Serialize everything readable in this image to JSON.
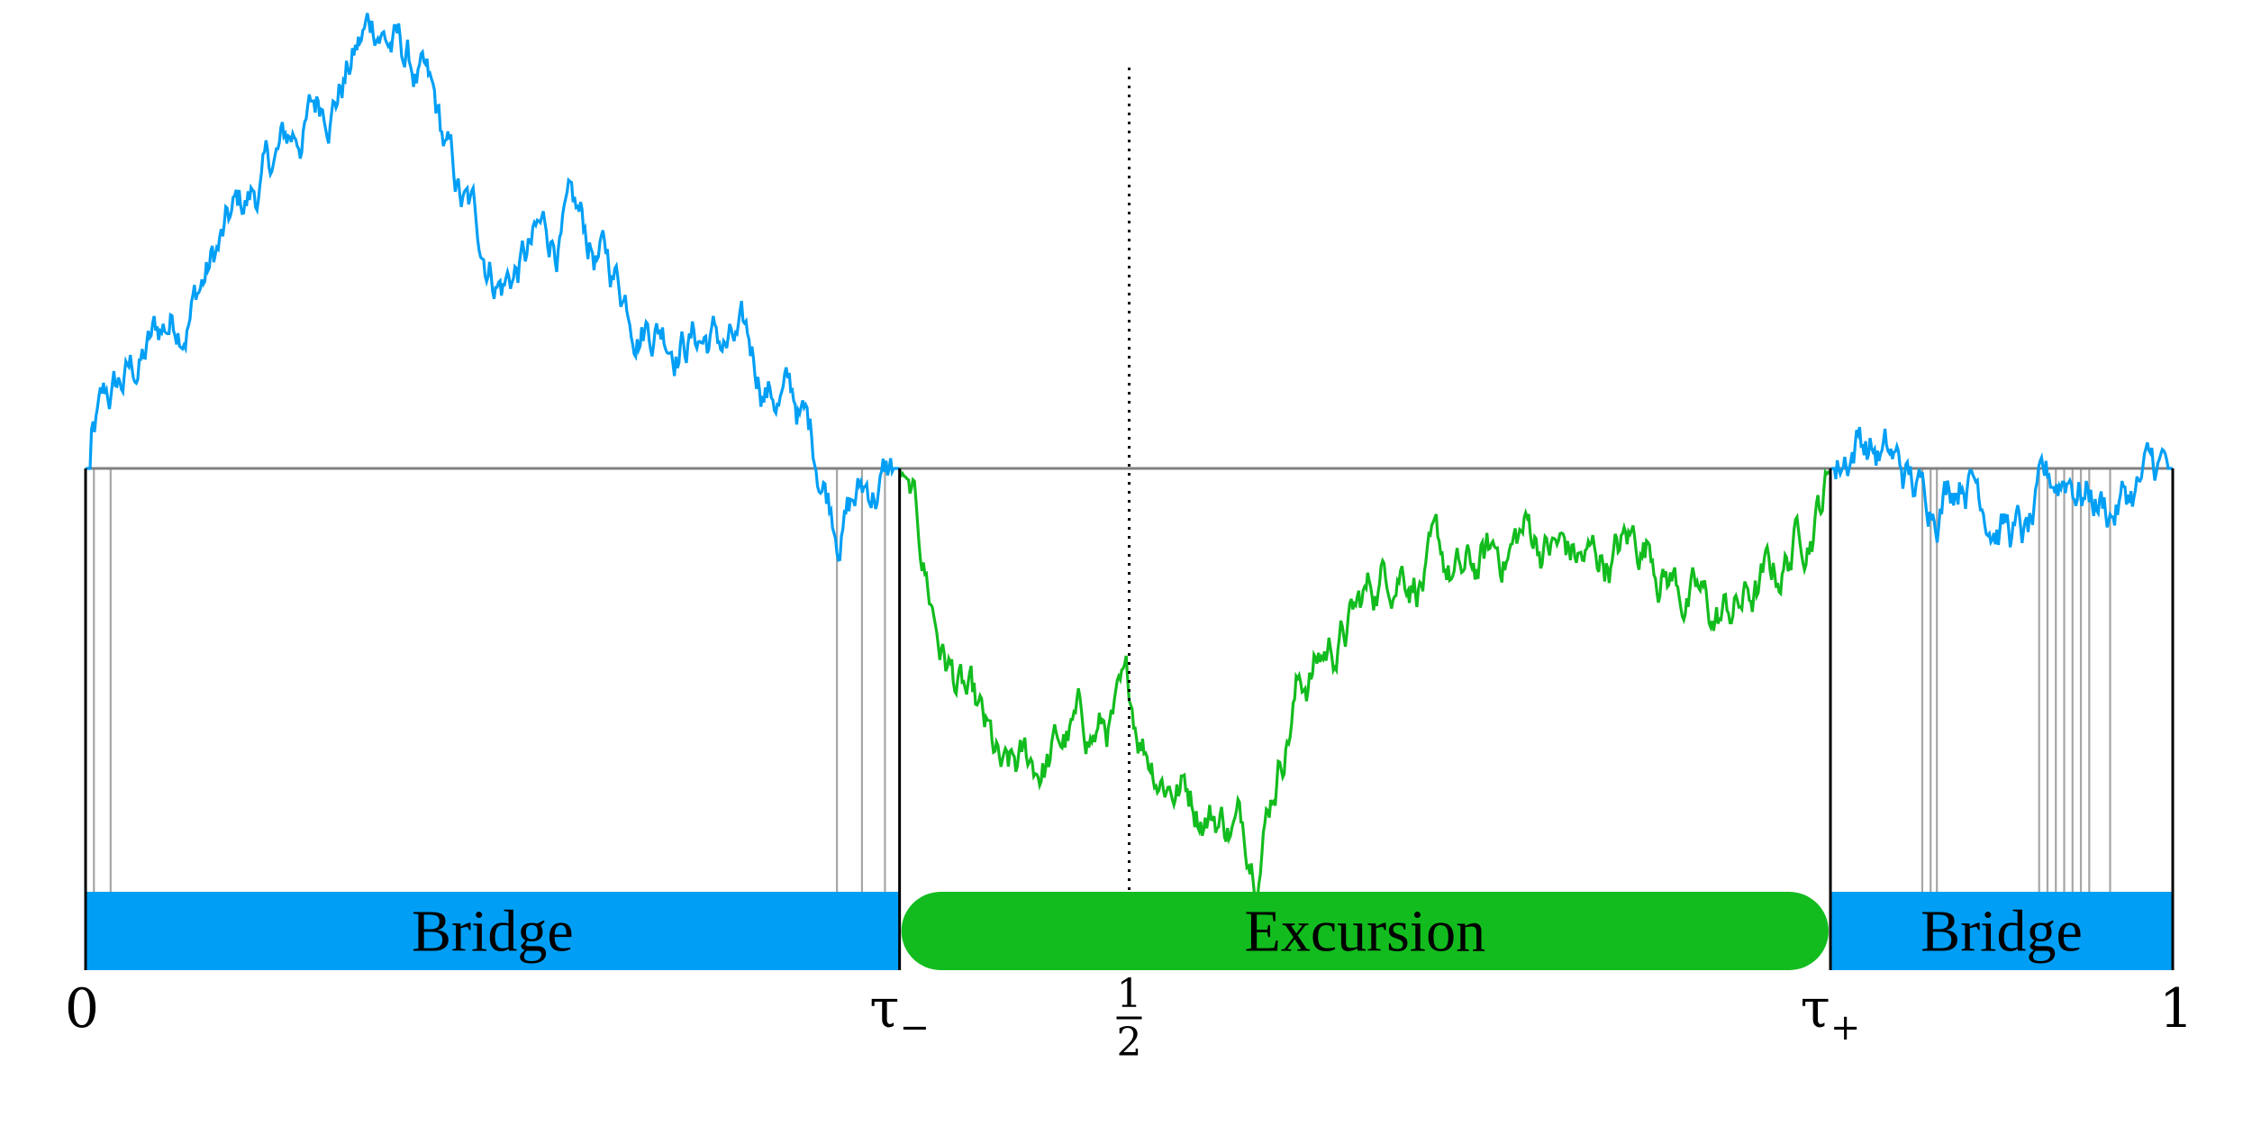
{
  "colors": {
    "bridge": "#009ff5",
    "excursion": "#12bc1e",
    "zero_line": "#808080",
    "zero_crossings": "#a6a6a6",
    "axis": "#000000"
  },
  "segments": {
    "bridge_left": {
      "label": "Bridge"
    },
    "excursion": {
      "label": "Excursion"
    },
    "bridge_right": {
      "label": "Bridge"
    }
  },
  "ticks": {
    "zero": "0",
    "tau_minus": {
      "symbol": "τ",
      "sub": "−"
    },
    "half": {
      "num": "1",
      "den": "2"
    },
    "tau_plus": {
      "symbol": "τ",
      "sub": "+"
    },
    "one": "1"
  },
  "marks": {
    "tau_minus": 0.39,
    "half": 0.5,
    "tau_plus": 0.836
  },
  "path_anchors": {
    "t": [
      0,
      0.01,
      0.05,
      0.09,
      0.14,
      0.16,
      0.18,
      0.2,
      0.23,
      0.26,
      0.3,
      0.34,
      0.36,
      0.375,
      0.39,
      0.41,
      0.44,
      0.47,
      0.5,
      0.52,
      0.56,
      0.58,
      0.61,
      0.63,
      0.66,
      0.69,
      0.72,
      0.75,
      0.78,
      0.81,
      0.836,
      0.85,
      0.88,
      0.9,
      0.93,
      0.95,
      0.97,
      1.0
    ],
    "x": [
      0,
      0.15,
      0.5,
      0.85,
      1.28,
      1.1,
      0.72,
      0.55,
      0.68,
      0.5,
      0.38,
      0.18,
      -0.1,
      -0.05,
      0.0,
      -0.5,
      -0.95,
      -0.78,
      -0.72,
      -0.85,
      -1.05,
      -0.6,
      -0.42,
      -0.22,
      -0.35,
      -0.18,
      -0.28,
      -0.2,
      -0.45,
      -0.32,
      0.0,
      0.12,
      -0.1,
      0.05,
      -0.22,
      0.0,
      -0.1,
      0.0
    ]
  },
  "zero_crossings": [
    0.004,
    0.012,
    0.36,
    0.372,
    0.383,
    0.88,
    0.884,
    0.887,
    0.936,
    0.94,
    0.944,
    0.948,
    0.952,
    0.956,
    0.96,
    0.97
  ]
}
